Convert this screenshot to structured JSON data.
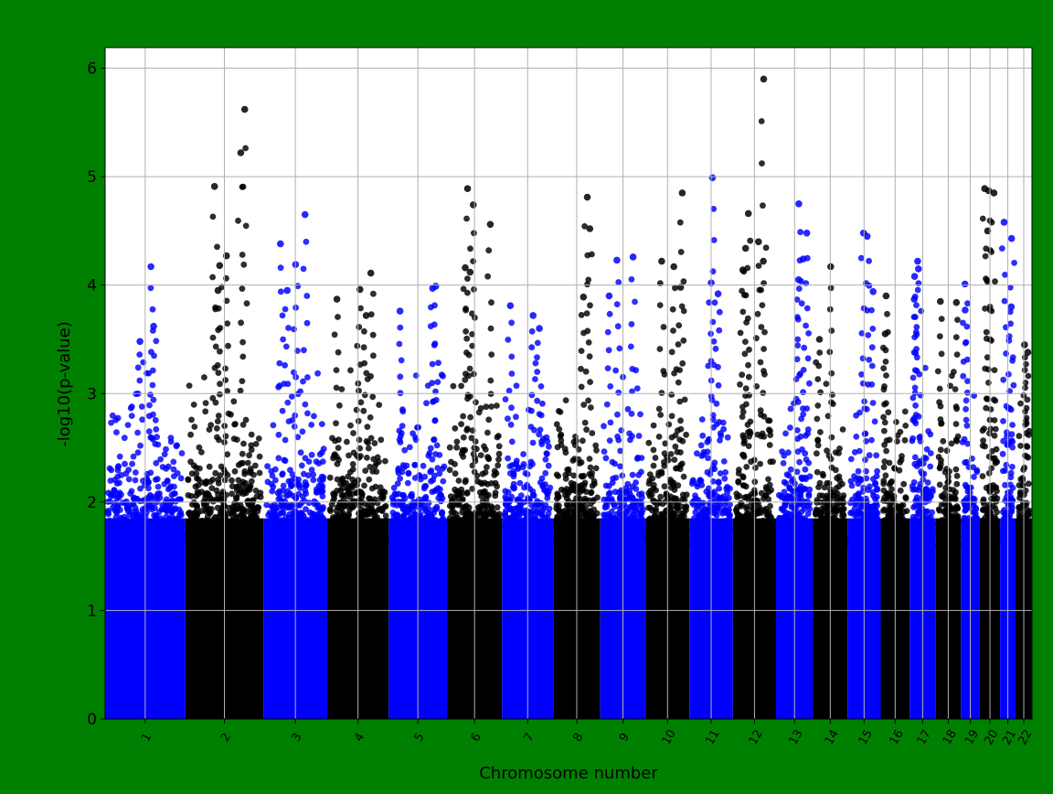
{
  "chart_data": {
    "type": "scatter",
    "title": "",
    "xlabel": "Chromosome number",
    "ylabel": "-log10(p-value)",
    "ylim": [
      0,
      6.19
    ],
    "yticks": [
      "0",
      "1",
      "2",
      "3",
      "4",
      "5",
      "6"
    ],
    "grid": true,
    "background": "#008000",
    "plot_background": "#ffffff",
    "colors": [
      "#0000ff",
      "#000000"
    ],
    "chromosomes": [
      {
        "label": "1",
        "length_mb": 249,
        "max": 4.17,
        "peaks": [
          4.17,
          3.62,
          3.48
        ]
      },
      {
        "label": "2",
        "length_mb": 243,
        "max": 5.62,
        "peaks": [
          5.62,
          5.22,
          4.91,
          4.27,
          4.18,
          3.95
        ]
      },
      {
        "label": "3",
        "length_mb": 198,
        "max": 4.65,
        "peaks": [
          4.65,
          4.38,
          4.19,
          3.95
        ]
      },
      {
        "label": "4",
        "length_mb": 191,
        "max": 4.11,
        "peaks": [
          4.11,
          3.96,
          3.87,
          3.72
        ]
      },
      {
        "label": "5",
        "length_mb": 181,
        "max": 3.99,
        "peaks": [
          3.99,
          3.97,
          3.76
        ]
      },
      {
        "label": "6",
        "length_mb": 171,
        "max": 4.89,
        "peaks": [
          4.89,
          4.74,
          4.56,
          4.16,
          4.12
        ]
      },
      {
        "label": "7",
        "length_mb": 159,
        "max": 3.81,
        "peaks": [
          3.81,
          3.72,
          3.6
        ]
      },
      {
        "label": "8",
        "length_mb": 146,
        "max": 4.81,
        "peaks": [
          4.81,
          4.52,
          3.89
        ]
      },
      {
        "label": "9",
        "length_mb": 141,
        "max": 4.26,
        "peaks": [
          4.26,
          4.23,
          3.9
        ]
      },
      {
        "label": "10",
        "length_mb": 136,
        "max": 4.85,
        "peaks": [
          4.85,
          4.22,
          4.17,
          3.98
        ]
      },
      {
        "label": "11",
        "length_mb": 135,
        "max": 4.99,
        "peaks": [
          4.99,
          4.02,
          3.92
        ]
      },
      {
        "label": "12",
        "length_mb": 134,
        "max": 5.9,
        "peaks": [
          5.9,
          4.66,
          4.4,
          4.34,
          4.22,
          4.14
        ]
      },
      {
        "label": "13",
        "length_mb": 115,
        "max": 4.75,
        "peaks": [
          4.75,
          4.48,
          4.24,
          4.05
        ]
      },
      {
        "label": "14",
        "length_mb": 107,
        "max": 4.17,
        "peaks": [
          4.17,
          3.5
        ]
      },
      {
        "label": "15",
        "length_mb": 103,
        "max": 4.48,
        "peaks": [
          4.48,
          4.45,
          3.94
        ]
      },
      {
        "label": "16",
        "length_mb": 90,
        "max": 3.9,
        "peaks": [
          3.9,
          3.55
        ]
      },
      {
        "label": "17",
        "length_mb": 81,
        "max": 4.22,
        "peaks": [
          4.22,
          4.15,
          4.08,
          3.87
        ]
      },
      {
        "label": "18",
        "length_mb": 78,
        "max": 3.85,
        "peaks": [
          3.85,
          3.84
        ]
      },
      {
        "label": "19",
        "length_mb": 59,
        "max": 4.01,
        "peaks": [
          4.01,
          3.77
        ]
      },
      {
        "label": "20",
        "length_mb": 63,
        "max": 4.89,
        "peaks": [
          4.89,
          4.87,
          4.85,
          4.5
        ]
      },
      {
        "label": "21",
        "length_mb": 48,
        "max": 4.58,
        "peaks": [
          4.58,
          4.43,
          3.8
        ]
      },
      {
        "label": "22",
        "length_mb": 51,
        "max": 3.45,
        "peaks": [
          3.45,
          3.38
        ]
      }
    ]
  }
}
